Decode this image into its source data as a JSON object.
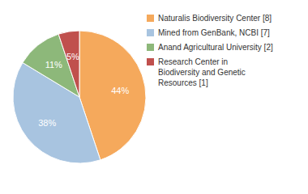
{
  "chart_data": {
    "type": "pie",
    "categories": [
      "Naturalis Biodiversity Center [8]",
      "Mined from GenBank, NCBI [7]",
      "Anand Agricultural University [2]",
      "Research Center in\nBiodiversity and Genetic\nResources [1]"
    ],
    "values": [
      44,
      38,
      11,
      5
    ],
    "value_labels": [
      "44%",
      "38%",
      "11%",
      "5%"
    ],
    "data_labels": true,
    "colors": [
      "#F5A95C",
      "#A8C4E0",
      "#8DB87A",
      "#C0504D"
    ],
    "legend": "right"
  }
}
